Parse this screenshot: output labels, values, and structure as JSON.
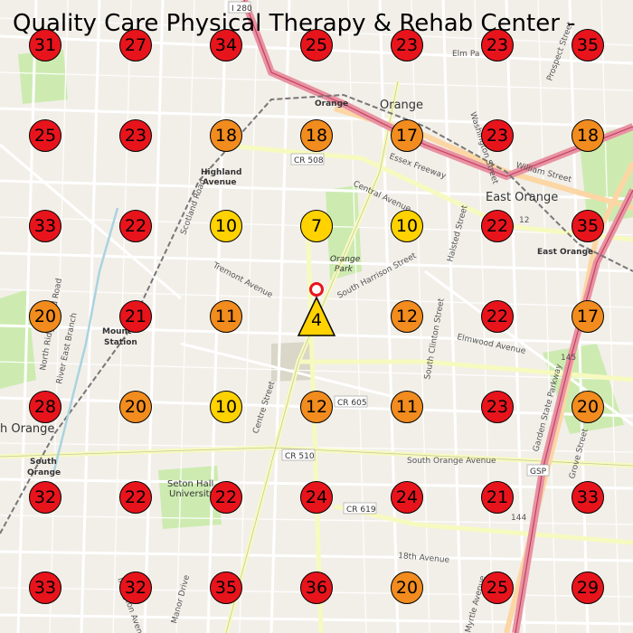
{
  "title": "Quality Care Physical Therapy & Rehab Center -",
  "colors": {
    "red": "#e8141c",
    "orange": "#f28c1e",
    "yellow": "#ffd200",
    "destination": "#ffd200",
    "origin": "#e8141c"
  },
  "travel_time_markers": [
    {
      "value": "31",
      "color": "red"
    },
    {
      "value": "27",
      "color": "red"
    },
    {
      "value": "34",
      "color": "red"
    },
    {
      "value": "25",
      "color": "red"
    },
    {
      "value": "23",
      "color": "red"
    },
    {
      "value": "23",
      "color": "red"
    },
    {
      "value": "35",
      "color": "red"
    },
    {
      "value": "25",
      "color": "red"
    },
    {
      "value": "23",
      "color": "red"
    },
    {
      "value": "18",
      "color": "orange"
    },
    {
      "value": "18",
      "color": "orange"
    },
    {
      "value": "17",
      "color": "orange"
    },
    {
      "value": "23",
      "color": "red"
    },
    {
      "value": "18",
      "color": "orange"
    },
    {
      "value": "33",
      "color": "red"
    },
    {
      "value": "22",
      "color": "red"
    },
    {
      "value": "10",
      "color": "yellow"
    },
    {
      "value": "7",
      "color": "yellow"
    },
    {
      "value": "10",
      "color": "yellow"
    },
    {
      "value": "22",
      "color": "red"
    },
    {
      "value": "35",
      "color": "red"
    },
    {
      "value": "20",
      "color": "orange"
    },
    {
      "value": "21",
      "color": "red"
    },
    {
      "value": "11",
      "color": "orange"
    },
    null,
    {
      "value": "12",
      "color": "orange"
    },
    {
      "value": "22",
      "color": "red"
    },
    {
      "value": "17",
      "color": "orange"
    },
    {
      "value": "28",
      "color": "red"
    },
    {
      "value": "20",
      "color": "orange"
    },
    {
      "value": "10",
      "color": "yellow"
    },
    {
      "value": "12",
      "color": "orange"
    },
    {
      "value": "11",
      "color": "orange"
    },
    {
      "value": "23",
      "color": "red"
    },
    {
      "value": "20",
      "color": "orange"
    },
    {
      "value": "32",
      "color": "red"
    },
    {
      "value": "22",
      "color": "red"
    },
    {
      "value": "22",
      "color": "red"
    },
    {
      "value": "24",
      "color": "red"
    },
    {
      "value": "24",
      "color": "red"
    },
    {
      "value": "21",
      "color": "red"
    },
    {
      "value": "33",
      "color": "red"
    },
    {
      "value": "33",
      "color": "red"
    },
    {
      "value": "32",
      "color": "red"
    },
    {
      "value": "35",
      "color": "red"
    },
    {
      "value": "36",
      "color": "red"
    },
    {
      "value": "20",
      "color": "orange"
    },
    {
      "value": "25",
      "color": "red"
    },
    {
      "value": "29",
      "color": "red"
    }
  ],
  "destination_marker": {
    "value": "4"
  },
  "place_labels": {
    "orange": "Orange",
    "east_orange": "East Orange",
    "highland": "Highland",
    "highland2": "Avenue",
    "east_orange_station": "East Orange",
    "orange_station": "Orange",
    "orange_park": "Orange",
    "orange_park2": "Park",
    "mountain_station": "Mount",
    "mountain_station2": "Station",
    "south_orange": "South",
    "south_orange2": "Orange",
    "seton_hall": "Seton Hall",
    "seton_hall2": "University",
    "s_orange_left": "h Orange"
  },
  "road_labels": {
    "i280": "I 280",
    "cr508": "CR 508",
    "cr605": "CR 605",
    "cr510": "CR 510",
    "cr619": "CR 619",
    "gsp": "GSP",
    "central_ave": "Central Avenue",
    "tremont": "Tremont Avenue",
    "south_harrison": "South Harrison Street",
    "south_orange_ave": "South Orange Avenue",
    "elmwood": "Elmwood Avenue",
    "scotland": "Scotland Road",
    "centre": "Centre Street",
    "north_ridgewood": "North Ridgewood Road",
    "washington": "Washington Street",
    "prospect": "Prospect Street",
    "halsted": "Halsted Street",
    "south_clinton": "South Clinton Street",
    "william": "William Street",
    "garden_state": "Garden State Parkway",
    "eighteenth": "18th Avenue",
    "irvington": "Irvington Avenue",
    "manor": "Manor Drive",
    "myrtle": "Myrtle Avenue",
    "elm": "Elm Pa",
    "essex_fwy": "Essex Freeway",
    "grove": "Grove Street",
    "river_east": "River East Branch",
    "n144": "144",
    "n145": "145",
    "n12": "12"
  }
}
